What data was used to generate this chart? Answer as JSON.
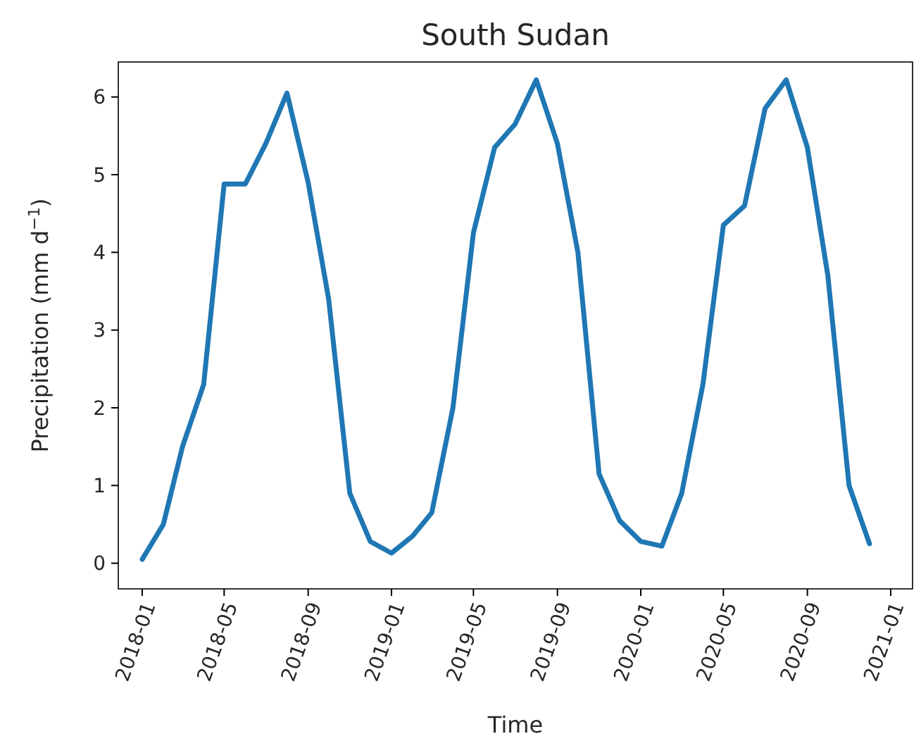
{
  "chart_data": {
    "type": "line",
    "title": "South Sudan",
    "xlabel": "Time",
    "ylabel": "Precipitation (mm d$^{−1}$)",
    "x": [
      "2018-01",
      "2018-02",
      "2018-03",
      "2018-04",
      "2018-05",
      "2018-06",
      "2018-07",
      "2018-08",
      "2018-09",
      "2018-10",
      "2018-11",
      "2018-12",
      "2019-01",
      "2019-02",
      "2019-03",
      "2019-04",
      "2019-05",
      "2019-06",
      "2019-07",
      "2019-08",
      "2019-09",
      "2019-10",
      "2019-11",
      "2019-12",
      "2020-01",
      "2020-02",
      "2020-03",
      "2020-04",
      "2020-05",
      "2020-06",
      "2020-07",
      "2020-08",
      "2020-09",
      "2020-10",
      "2020-11",
      "2020-12"
    ],
    "series": [
      {
        "color": "#1f77b4",
        "values": [
          0.05,
          0.5,
          1.5,
          2.3,
          4.88,
          4.88,
          5.4,
          6.05,
          4.9,
          3.4,
          0.9,
          0.28,
          0.13,
          0.35,
          0.65,
          2.0,
          4.25,
          5.35,
          5.65,
          6.22,
          5.4,
          4.0,
          1.15,
          0.55,
          0.28,
          0.22,
          0.9,
          2.3,
          4.35,
          4.6,
          5.85,
          6.22,
          5.35,
          3.7,
          1.0,
          0.25
        ]
      }
    ],
    "xlim": [
      "2017-11-27",
      "2021-02-02"
    ],
    "xticks": [
      {
        "value": "2018-01",
        "label": "2018-01"
      },
      {
        "value": "2018-05",
        "label": "2018-05"
      },
      {
        "value": "2018-09",
        "label": "2018-09"
      },
      {
        "value": "2019-01",
        "label": "2019-01"
      },
      {
        "value": "2019-05",
        "label": "2019-05"
      },
      {
        "value": "2019-09",
        "label": "2019-09"
      },
      {
        "value": "2020-01",
        "label": "2020-01"
      },
      {
        "value": "2020-05",
        "label": "2020-05"
      },
      {
        "value": "2020-09",
        "label": "2020-09"
      },
      {
        "value": "2021-01",
        "label": "2021-01"
      }
    ],
    "ylim": [
      -0.33,
      6.45
    ],
    "yticks": [
      0,
      1,
      2,
      3,
      4,
      5,
      6
    ],
    "grid": false,
    "marker": "none",
    "line_style": "solid"
  }
}
